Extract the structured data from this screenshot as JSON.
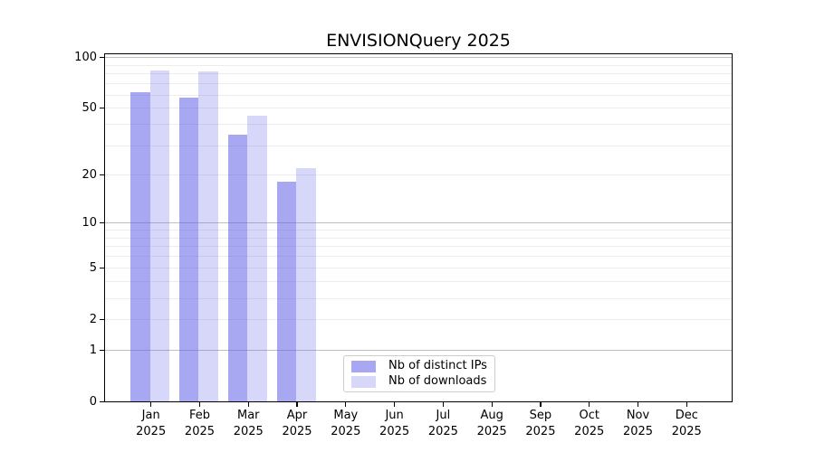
{
  "chart_data": {
    "type": "bar",
    "title": "ENVISIONQuery 2025",
    "categories": [
      "Jan 2025",
      "Feb 2025",
      "Mar 2025",
      "Apr 2025",
      "May 2025",
      "Jun 2025",
      "Jul 2025",
      "Aug 2025",
      "Sep 2025",
      "Oct 2025",
      "Nov 2025",
      "Dec 2025"
    ],
    "series": [
      {
        "name": "Nb of distinct IPs",
        "color": "rgba(96,96,232,0.55)",
        "values": [
          62,
          58,
          35,
          18,
          null,
          null,
          null,
          null,
          null,
          null,
          null,
          null
        ]
      },
      {
        "name": "Nb of downloads",
        "color": "rgba(96,96,232,0.25)",
        "values": [
          84,
          83,
          45,
          22,
          null,
          null,
          null,
          null,
          null,
          null,
          null,
          null
        ]
      }
    ],
    "yscale": "log1p",
    "ylim": [
      0,
      100
    ],
    "y_ticks": [
      100,
      50,
      20,
      10,
      5,
      2,
      1,
      0
    ],
    "grid": {
      "major_lines": [
        1,
        10,
        100
      ],
      "minor_lines": [
        2,
        3,
        4,
        5,
        6,
        7,
        8,
        9,
        20,
        30,
        40,
        50,
        60,
        70,
        80,
        90
      ],
      "major_color": "#bfbfbf",
      "minor_color": "#ececec"
    },
    "legend_position": "bottom-center-inside",
    "colors": {
      "frame": "#000000",
      "text": "#000000",
      "background": "#ffffff"
    }
  }
}
